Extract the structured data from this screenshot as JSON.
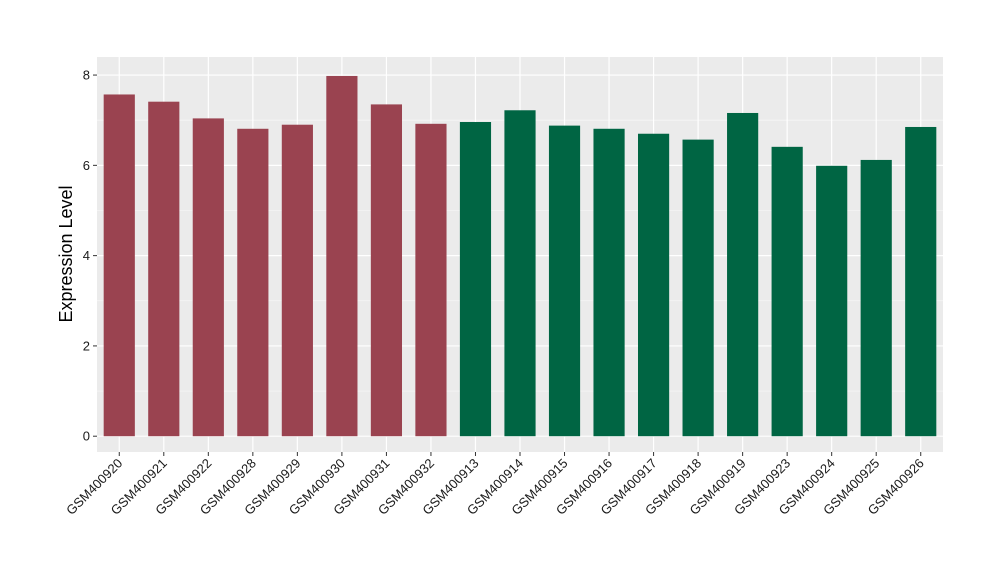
{
  "chart_data": {
    "type": "bar",
    "ylabel": "Expression Level",
    "xlabel": "",
    "ylim": [
      -0.35,
      8.4
    ],
    "yticks": [
      0,
      2,
      4,
      6,
      8
    ],
    "grid": true,
    "background": "#ebebeb",
    "categories": [
      "GSM400920",
      "GSM400921",
      "GSM400922",
      "GSM400928",
      "GSM400929",
      "GSM400930",
      "GSM400931",
      "GSM400932",
      "GSM400913",
      "GSM400914",
      "GSM400915",
      "GSM400916",
      "GSM400917",
      "GSM400918",
      "GSM400919",
      "GSM400923",
      "GSM400924",
      "GSM400925",
      "GSM400926"
    ],
    "values": [
      7.57,
      7.41,
      7.04,
      6.81,
      6.9,
      7.98,
      7.35,
      6.92,
      6.96,
      7.22,
      6.88,
      6.81,
      6.7,
      6.57,
      7.16,
      6.41,
      5.99,
      6.12,
      6.85
    ],
    "groups": [
      0,
      0,
      0,
      0,
      0,
      0,
      0,
      0,
      1,
      1,
      1,
      1,
      1,
      1,
      1,
      1,
      1,
      1,
      1
    ],
    "group_colors": [
      "#9a4350",
      "#006543"
    ]
  }
}
